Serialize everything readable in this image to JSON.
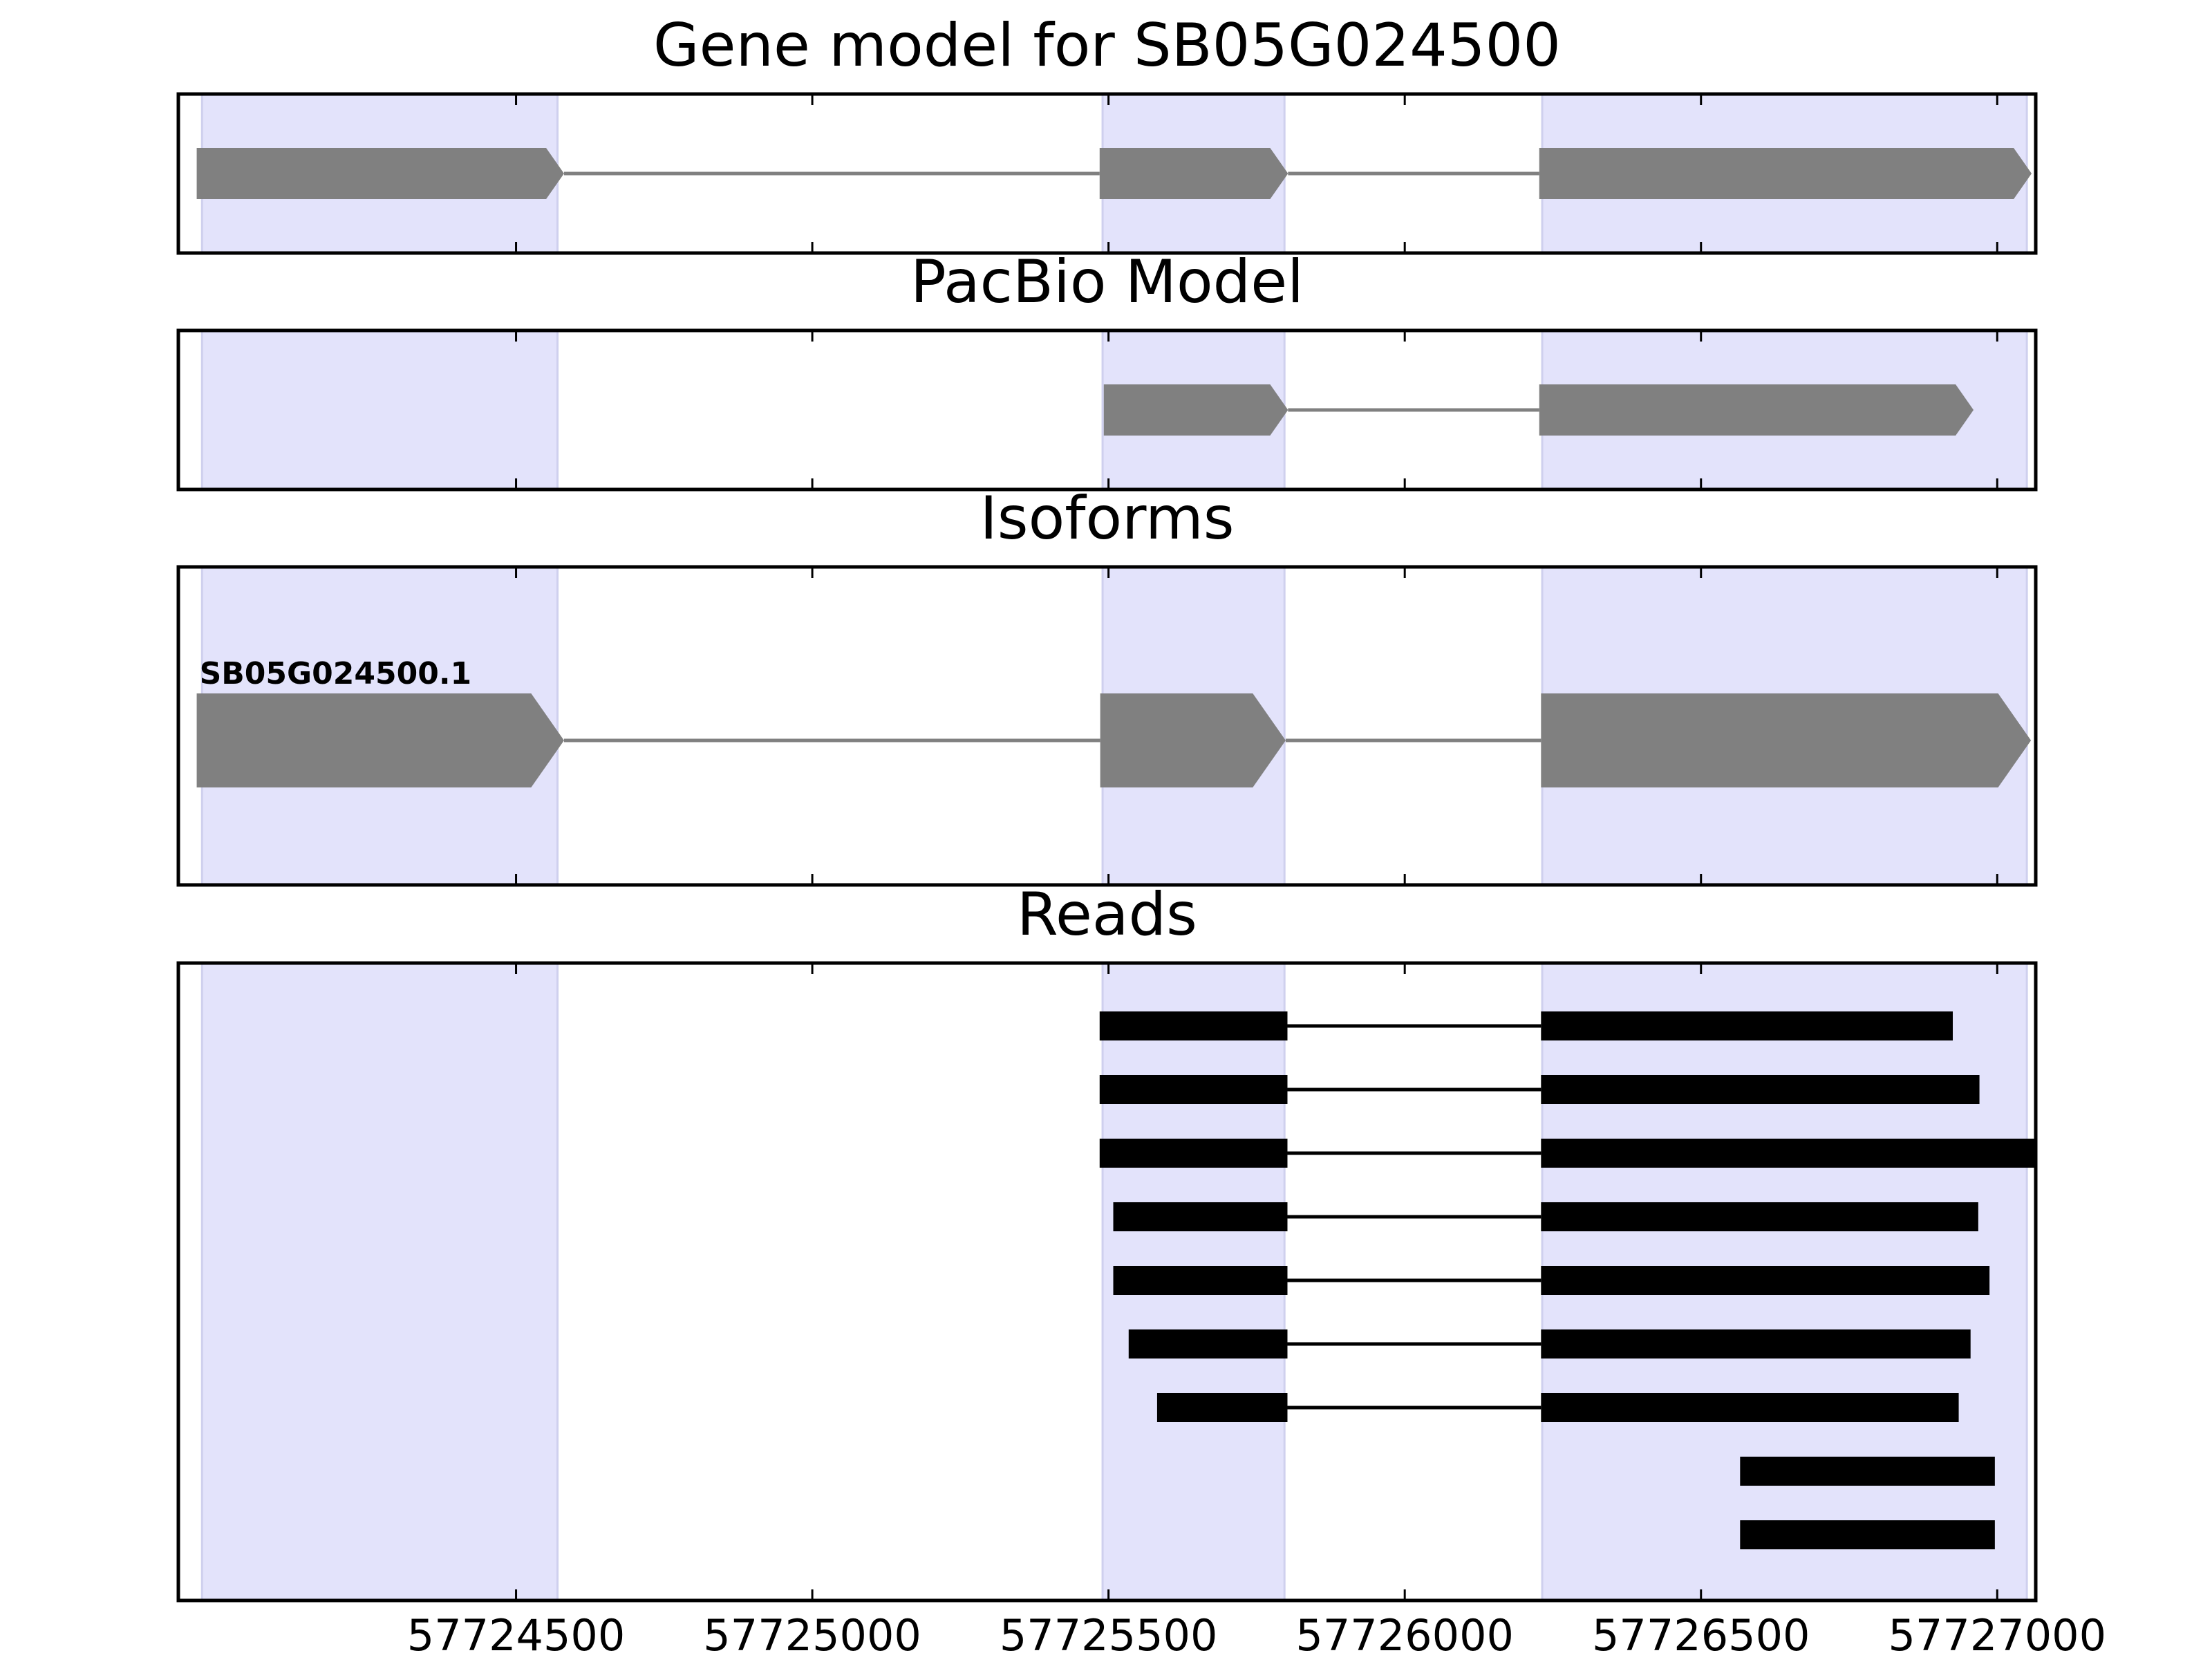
{
  "colors": {
    "background": "#ffffff",
    "shade": "#e3e3fb",
    "shade_edge": "#cfd0ee",
    "gene_block": "#808080",
    "intron_line": "#808080",
    "read_block": "#000000",
    "read_line": "#000000",
    "axis": "#000000"
  },
  "chart_data": {
    "type": "gene-track",
    "x_range": [
      57723930,
      57727065
    ],
    "x_ticks": [
      {
        "value": 57724500,
        "label": "57724500"
      },
      {
        "value": 57725000,
        "label": "57725000"
      },
      {
        "value": 57725500,
        "label": "57725500"
      },
      {
        "value": 57726000,
        "label": "57726000"
      },
      {
        "value": 57726500,
        "label": "57726500"
      },
      {
        "value": 57727000,
        "label": "57727000"
      }
    ],
    "shaded_regions": [
      [
        57723970,
        57724570
      ],
      [
        57725490,
        57725797
      ],
      [
        57726232,
        57727050
      ]
    ],
    "panels": [
      {
        "title": "Gene model for SB05G024500",
        "kind": "gene",
        "tracks": [
          {
            "label": "",
            "exons": [
              [
                57723961,
                57724581
              ],
              [
                57725485,
                57725803
              ],
              [
                57726227,
                57727058
              ]
            ]
          }
        ]
      },
      {
        "title": "PacBio Model",
        "kind": "gene",
        "tracks": [
          {
            "label": "",
            "exons": [
              [
                57725492,
                57725803
              ],
              [
                57726227,
                57726960
              ]
            ]
          }
        ]
      },
      {
        "title": "Isoforms",
        "kind": "gene",
        "tracks": [
          {
            "label": "SB05G024500.1",
            "exons": [
              [
                57723961,
                57724581
              ],
              [
                57725486,
                57725799
              ],
              [
                57726230,
                57727057
              ]
            ]
          }
        ]
      },
      {
        "title": "Reads",
        "kind": "reads",
        "tracks": [
          {
            "exons": [
              [
                57725485,
                57725802
              ],
              [
                57726230,
                57726925
              ]
            ]
          },
          {
            "exons": [
              [
                57725485,
                57725802
              ],
              [
                57726230,
                57726970
              ]
            ]
          },
          {
            "exons": [
              [
                57725485,
                57725802
              ],
              [
                57726230,
                57727065
              ]
            ]
          },
          {
            "exons": [
              [
                57725508,
                57725802
              ],
              [
                57726230,
                57726968
              ]
            ]
          },
          {
            "exons": [
              [
                57725508,
                57725802
              ],
              [
                57726230,
                57726987
              ]
            ]
          },
          {
            "exons": [
              [
                57725534,
                57725802
              ],
              [
                57726230,
                57726955
              ]
            ]
          },
          {
            "exons": [
              [
                57725582,
                57725802
              ],
              [
                57726230,
                57726935
              ]
            ]
          },
          {
            "exons": [
              [
                57726566,
                57726996
              ]
            ]
          },
          {
            "exons": [
              [
                57726566,
                57726996
              ]
            ]
          }
        ]
      }
    ]
  }
}
